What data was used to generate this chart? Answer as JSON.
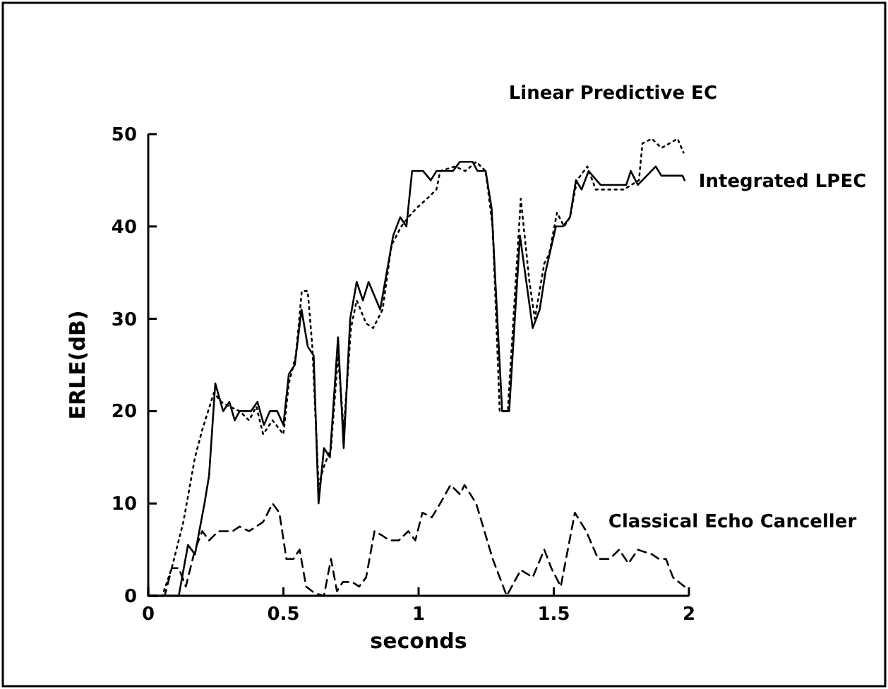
{
  "chart_data": {
    "type": "line",
    "xlabel": "seconds",
    "ylabel": "ERLE(dB)",
    "xlim": [
      0,
      2
    ],
    "ylim": [
      0,
      50
    ],
    "xticks": [
      0,
      0.5,
      1,
      1.5,
      2
    ],
    "yticks": [
      0,
      10,
      20,
      30,
      40,
      50
    ],
    "marker": "none",
    "series": [
      {
        "name": "Linear Predictive EC",
        "color": "#000000",
        "line_style": "dotted",
        "x": [
          0,
          0.052,
          0.087,
          0.13,
          0.173,
          0.2,
          0.243,
          0.27,
          0.3,
          0.338,
          0.373,
          0.4,
          0.425,
          0.46,
          0.5,
          0.52,
          0.546,
          0.568,
          0.59,
          0.607,
          0.63,
          0.65,
          0.676,
          0.702,
          0.723,
          0.75,
          0.771,
          0.806,
          0.832,
          0.867,
          0.9,
          0.936,
          0.962,
          0.993,
          1.031,
          1.066,
          1.08,
          1.135,
          1.173,
          1.213,
          1.248,
          1.274,
          1.3,
          1.33,
          1.378,
          1.41,
          1.43,
          1.465,
          1.483,
          1.512,
          1.538,
          1.56,
          1.586,
          1.624,
          1.655,
          1.759,
          1.815,
          1.828,
          1.863,
          1.898,
          1.958,
          1.98
        ],
        "values": [
          0,
          0,
          3,
          8,
          15,
          18,
          22,
          21,
          20.5,
          20,
          19,
          20.5,
          17.5,
          19,
          17.5,
          23,
          26,
          33,
          33,
          27,
          12,
          14,
          16,
          26,
          18,
          29,
          32,
          29.5,
          29,
          31,
          38,
          40,
          41,
          42,
          43,
          44,
          46,
          46.5,
          46,
          47,
          46,
          40,
          20,
          20,
          43,
          34,
          30,
          36,
          37,
          41.5,
          40,
          41,
          45,
          46.5,
          44,
          44,
          45,
          49,
          49.5,
          48.5,
          49.5,
          48
        ]
      },
      {
        "name": "Integrated LPEC",
        "color": "#000000",
        "line_style": "solid",
        "x": [
          0,
          0.113,
          0.147,
          0.173,
          0.208,
          0.225,
          0.248,
          0.277,
          0.3,
          0.32,
          0.338,
          0.38,
          0.404,
          0.428,
          0.45,
          0.477,
          0.5,
          0.52,
          0.542,
          0.567,
          0.59,
          0.612,
          0.63,
          0.65,
          0.672,
          0.702,
          0.723,
          0.747,
          0.771,
          0.794,
          0.815,
          0.858,
          0.906,
          0.932,
          0.955,
          0.976,
          1.017,
          1.045,
          1.066,
          1.127,
          1.153,
          1.2,
          1.218,
          1.248,
          1.27,
          1.309,
          1.335,
          1.375,
          1.422,
          1.448,
          1.469,
          1.508,
          1.534,
          1.56,
          1.582,
          1.603,
          1.629,
          1.673,
          1.768,
          1.785,
          1.811,
          1.877,
          1.898,
          1.976,
          1.984
        ],
        "values": [
          0,
          0,
          5.5,
          4.5,
          10,
          13,
          23,
          20,
          21,
          19,
          20,
          20,
          21,
          18.5,
          20,
          20,
          18.5,
          24,
          25,
          31,
          27,
          26,
          10,
          16,
          15,
          28,
          16,
          30,
          34,
          32,
          34,
          31,
          39,
          41,
          40,
          46,
          46,
          45,
          46,
          46,
          47,
          47,
          46,
          46,
          42,
          20,
          20,
          39,
          29,
          31,
          35,
          40,
          40,
          41,
          45,
          44,
          46,
          44.5,
          44.5,
          46,
          44.5,
          46.5,
          45.5,
          45.5,
          45
        ]
      },
      {
        "name": "Classical Echo Canceller",
        "color": "#000000",
        "line_style": "dashed",
        "x": [
          0,
          0.061,
          0.087,
          0.113,
          0.139,
          0.173,
          0.2,
          0.225,
          0.26,
          0.312,
          0.338,
          0.373,
          0.425,
          0.46,
          0.485,
          0.511,
          0.537,
          0.56,
          0.584,
          0.615,
          0.65,
          0.676,
          0.698,
          0.72,
          0.754,
          0.78,
          0.806,
          0.837,
          0.867,
          0.892,
          0.927,
          0.962,
          0.988,
          1.014,
          1.049,
          1.08,
          1.118,
          1.153,
          1.17,
          1.213,
          1.274,
          1.326,
          1.378,
          1.422,
          1.465,
          1.491,
          1.526,
          1.578,
          1.62,
          1.664,
          1.707,
          1.742,
          1.776,
          1.811,
          1.863,
          1.889,
          1.915,
          1.941,
          1.984
        ],
        "values": [
          0,
          0,
          3,
          3,
          1,
          5,
          7,
          6,
          7,
          7,
          7.5,
          7,
          8,
          10,
          9,
          4,
          4,
          5,
          1,
          0.3,
          0,
          4,
          0.5,
          1.5,
          1.5,
          1,
          2,
          7,
          6.5,
          6,
          6,
          7,
          6,
          9,
          8.5,
          10,
          12,
          11,
          12,
          10,
          4,
          0,
          2.8,
          2,
          5,
          3,
          1,
          9,
          7,
          4,
          4,
          5,
          3.5,
          5,
          4.5,
          4,
          4,
          2,
          1
        ]
      }
    ]
  }
}
